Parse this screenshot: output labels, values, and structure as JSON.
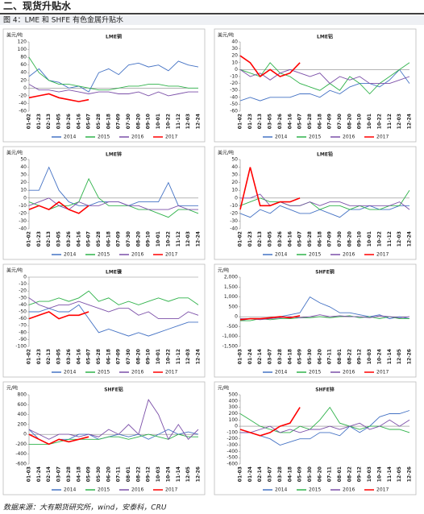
{
  "heading": "二、现货升贴水",
  "figure_title": "图 4：LME 和 SHFE 有色金属升贴水",
  "source": "数据来源：大有期货研究所，wind，安泰科，CRU",
  "chart_data": [
    {
      "type": "line",
      "title": "LME铜",
      "y_label": "美元/吨",
      "categories": [
        "01-02",
        "01-23",
        "02-13",
        "03-05",
        "03-26",
        "04-16",
        "05-07",
        "05-28",
        "06-18",
        "07-09",
        "07-30",
        "08-20",
        "09-10",
        "10-01",
        "10-22",
        "11-12",
        "12-03",
        "12-24"
      ],
      "ylim": [
        -60,
        120
      ],
      "yticks": [
        -60,
        -40,
        -20,
        0,
        20,
        40,
        60,
        80,
        100,
        120
      ],
      "series": [
        {
          "name": "2014",
          "color": "#4472c4",
          "values": [
            30,
            50,
            20,
            15,
            0,
            5,
            -10,
            40,
            50,
            35,
            60,
            65,
            55,
            60,
            45,
            70,
            60,
            55
          ]
        },
        {
          "name": "2015",
          "color": "#2fb24a",
          "values": [
            80,
            40,
            20,
            10,
            10,
            5,
            0,
            -5,
            -5,
            0,
            5,
            5,
            10,
            10,
            5,
            5,
            0,
            0
          ]
        },
        {
          "name": "2016",
          "color": "#7b4fa8",
          "values": [
            10,
            -5,
            -5,
            -10,
            -5,
            -10,
            -15,
            -10,
            -10,
            -15,
            -15,
            -10,
            -20,
            -10,
            -20,
            -15,
            -10,
            -10
          ]
        },
        {
          "name": "2017",
          "color": "#ff0000",
          "values": [
            -25,
            -20,
            -15,
            -25,
            -30,
            -35,
            -30,
            null,
            null,
            null,
            null,
            null,
            null,
            null,
            null,
            null,
            null,
            null
          ]
        }
      ]
    },
    {
      "type": "line",
      "title": "LME铝",
      "y_label": "美元/吨",
      "categories": [
        "01-02",
        "01-23",
        "02-13",
        "03-05",
        "03-26",
        "04-16",
        "05-07",
        "05-28",
        "06-18",
        "07-09",
        "07-30",
        "08-20",
        "09-10",
        "10-01",
        "10-22",
        "11-12",
        "12-03",
        "12-24"
      ],
      "ylim": [
        -60,
        40
      ],
      "yticks": [
        -60,
        -50,
        -40,
        -30,
        -20,
        -10,
        0,
        10,
        20,
        30,
        40
      ],
      "series": [
        {
          "name": "2014",
          "color": "#4472c4",
          "values": [
            -45,
            -40,
            -45,
            -40,
            -40,
            -40,
            -35,
            -35,
            -40,
            -30,
            -35,
            -25,
            -20,
            -20,
            -25,
            -15,
            0,
            -20
          ]
        },
        {
          "name": "2015",
          "color": "#2fb24a",
          "values": [
            0,
            -5,
            -10,
            10,
            -5,
            -10,
            -20,
            -25,
            -30,
            -20,
            -30,
            -10,
            -20,
            -35,
            -20,
            -10,
            0,
            10
          ]
        },
        {
          "name": "2016",
          "color": "#7b4fa8",
          "values": [
            0,
            -10,
            -5,
            -15,
            -5,
            0,
            -5,
            -10,
            -5,
            -20,
            -10,
            -15,
            -10,
            -20,
            -20,
            -20,
            -15,
            -10
          ]
        },
        {
          "name": "2017",
          "color": "#ff0000",
          "values": [
            20,
            10,
            -10,
            0,
            -10,
            -5,
            10,
            null,
            null,
            null,
            null,
            null,
            null,
            null,
            null,
            null,
            null,
            null
          ]
        }
      ]
    },
    {
      "type": "line",
      "title": "LME锌",
      "y_label": "美元/吨",
      "categories": [
        "01-02",
        "01-23",
        "02-13",
        "03-05",
        "03-26",
        "04-16",
        "05-07",
        "05-28",
        "06-18",
        "07-09",
        "07-30",
        "08-20",
        "09-10",
        "10-01",
        "10-22",
        "11-12",
        "12-03",
        "12-24"
      ],
      "ylim": [
        -40,
        50
      ],
      "yticks": [
        -40,
        -30,
        -20,
        -10,
        0,
        10,
        20,
        30,
        40,
        50
      ],
      "series": [
        {
          "name": "2014",
          "color": "#4472c4",
          "values": [
            10,
            10,
            40,
            10,
            -5,
            -10,
            -10,
            -5,
            -5,
            -5,
            -10,
            -5,
            -5,
            -5,
            20,
            -10,
            -10,
            -10
          ]
        },
        {
          "name": "2015",
          "color": "#2fb24a",
          "values": [
            -5,
            -10,
            -15,
            -10,
            -10,
            -5,
            25,
            0,
            -10,
            -10,
            -10,
            -15,
            -15,
            -20,
            -25,
            -15,
            -15,
            -20
          ]
        },
        {
          "name": "2016",
          "color": "#7b4fa8",
          "values": [
            -10,
            -5,
            0,
            -10,
            -15,
            -5,
            -10,
            -10,
            -5,
            -5,
            -10,
            -10,
            -15,
            -15,
            -15,
            -10,
            -15,
            -15
          ]
        },
        {
          "name": "2017",
          "color": "#ff0000",
          "values": [
            -15,
            -10,
            -15,
            -5,
            -15,
            -20,
            -10,
            null,
            null,
            null,
            null,
            null,
            null,
            null,
            null,
            null,
            null,
            null
          ]
        }
      ]
    },
    {
      "type": "line",
      "title": "LME铅",
      "y_label": "美元/吨",
      "categories": [
        "01-02",
        "01-23",
        "02-13",
        "03-05",
        "03-26",
        "04-16",
        "05-07",
        "05-28",
        "06-18",
        "07-09",
        "07-30",
        "08-20",
        "09-10",
        "10-01",
        "10-22",
        "11-12",
        "12-03",
        "12-24"
      ],
      "ylim": [
        -40,
        50
      ],
      "yticks": [
        -40,
        -30,
        -20,
        -10,
        0,
        10,
        20,
        30,
        40,
        50
      ],
      "series": [
        {
          "name": "2014",
          "color": "#4472c4",
          "values": [
            -20,
            -25,
            -15,
            -20,
            -10,
            -15,
            -20,
            -20,
            -15,
            -20,
            -25,
            -15,
            -15,
            -10,
            -15,
            -15,
            -10,
            -10
          ]
        },
        {
          "name": "2015",
          "color": "#2fb24a",
          "values": [
            -10,
            -5,
            0,
            -5,
            -5,
            -10,
            -10,
            -5,
            -15,
            -10,
            -10,
            -15,
            -10,
            -15,
            -15,
            -10,
            -10,
            10
          ]
        },
        {
          "name": "2016",
          "color": "#7b4fa8",
          "values": [
            0,
            0,
            5,
            -10,
            -5,
            -10,
            -10,
            -5,
            -10,
            -5,
            -5,
            -10,
            -10,
            -10,
            -10,
            -10,
            -5,
            -15
          ]
        },
        {
          "name": "2017",
          "color": "#ff0000",
          "values": [
            -15,
            40,
            -10,
            -10,
            -5,
            -5,
            0,
            null,
            null,
            null,
            null,
            null,
            null,
            null,
            null,
            null,
            null,
            null
          ]
        }
      ]
    },
    {
      "type": "line",
      "title": "LME镍",
      "y_label": "美元/吨",
      "categories": [
        "01-02",
        "01-23",
        "02-13",
        "03-05",
        "03-26",
        "04-16",
        "05-07",
        "05-28",
        "06-18",
        "07-09",
        "07-30",
        "08-20",
        "09-10",
        "10-01",
        "10-22",
        "11-12",
        "12-03",
        "12-24"
      ],
      "ylim": [
        -100,
        0
      ],
      "yticks": [
        -100,
        -90,
        -80,
        -70,
        -60,
        -50,
        -40,
        -30,
        -20,
        -10,
        0
      ],
      "series": [
        {
          "name": "2014",
          "color": "#4472c4",
          "values": [
            -50,
            -50,
            -45,
            -50,
            -50,
            -40,
            -60,
            -80,
            -75,
            -80,
            -85,
            -80,
            -85,
            -80,
            -75,
            -70,
            -65,
            -65
          ]
        },
        {
          "name": "2015",
          "color": "#2fb24a",
          "values": [
            -40,
            -35,
            -35,
            -30,
            -35,
            -30,
            -20,
            -35,
            -30,
            -40,
            -35,
            -40,
            -35,
            -30,
            -35,
            -30,
            -30,
            -40
          ]
        },
        {
          "name": "2016",
          "color": "#7b4fa8",
          "values": [
            -30,
            -40,
            -45,
            -40,
            -40,
            -35,
            -40,
            -45,
            -50,
            -45,
            -45,
            -55,
            -50,
            -60,
            -60,
            -60,
            -50,
            -55
          ]
        },
        {
          "name": "2017",
          "color": "#ff0000",
          "values": [
            -60,
            -55,
            -50,
            -60,
            -55,
            -55,
            -50,
            null,
            null,
            null,
            null,
            null,
            null,
            null,
            null,
            null,
            null,
            null
          ]
        }
      ]
    },
    {
      "type": "line",
      "title": "SHFE铜",
      "y_label": "元/吨",
      "categories": [
        "01-03",
        "01-24",
        "02-14",
        "03-07",
        "03-28",
        "04-18",
        "05-09",
        "05-30",
        "06-20",
        "07-11",
        "08-01",
        "08-22",
        "09-12",
        "10-03",
        "10-24",
        "11-14",
        "12-05",
        "12-26"
      ],
      "ylim": [
        -1500,
        2000
      ],
      "yticks": [
        {
          "value": -1500,
          "label": "-1,500"
        },
        {
          "value": -1000,
          "label": "-1,000"
        },
        -500,
        0,
        500,
        {
          "value": 1000,
          "label": "1,000"
        },
        {
          "value": 1500,
          "label": "1,500"
        },
        {
          "value": 2000,
          "label": "2,000"
        }
      ],
      "series": [
        {
          "name": "2014",
          "color": "#4472c4",
          "values": [
            -200,
            -100,
            -100,
            -50,
            0,
            100,
            200,
            1000,
            700,
            500,
            200,
            200,
            100,
            0,
            100,
            -100,
            0,
            -100
          ]
        },
        {
          "name": "2015",
          "color": "#2fb24a",
          "values": [
            -200,
            -200,
            -100,
            -150,
            -100,
            -100,
            -50,
            -50,
            0,
            -50,
            0,
            50,
            -50,
            0,
            -100,
            0,
            -100,
            -100
          ]
        },
        {
          "name": "2016",
          "color": "#7b4fa8",
          "values": [
            -100,
            -100,
            -150,
            -100,
            -50,
            0,
            -50,
            0,
            100,
            0,
            50,
            0,
            0,
            -50,
            50,
            0,
            -50,
            0
          ]
        },
        {
          "name": "2017",
          "color": "#ff0000",
          "values": [
            -150,
            -100,
            -100,
            -50,
            0,
            -50,
            50,
            null,
            null,
            null,
            null,
            null,
            null,
            null,
            null,
            null,
            null,
            null
          ]
        }
      ]
    },
    {
      "type": "line",
      "title": "SHFE铝",
      "y_label": "元/吨",
      "categories": [
        "01-03",
        "01-24",
        "02-14",
        "03-07",
        "03-28",
        "04-18",
        "05-09",
        "05-30",
        "06-20",
        "07-11",
        "08-01",
        "08-22",
        "09-12",
        "10-03",
        "10-24",
        "11-14",
        "12-05",
        "12-26"
      ],
      "ylim": [
        -600,
        800
      ],
      "yticks": [
        -600,
        -400,
        -200,
        0,
        200,
        400,
        600,
        800
      ],
      "series": [
        {
          "name": "2014",
          "color": "#4472c4",
          "values": [
            100,
            -100,
            -200,
            -100,
            -100,
            0,
            0,
            -100,
            -50,
            0,
            -50,
            0,
            -100,
            0,
            100,
            0,
            50,
            0
          ]
        },
        {
          "name": "2015",
          "color": "#2fb24a",
          "values": [
            -200,
            -200,
            -200,
            -150,
            -100,
            -100,
            -100,
            -100,
            -50,
            -50,
            -100,
            -50,
            0,
            -50,
            -100,
            0,
            -50,
            -50
          ]
        },
        {
          "name": "2016",
          "color": "#7b4fa8",
          "values": [
            100,
            0,
            -100,
            0,
            0,
            -50,
            0,
            -50,
            100,
            0,
            200,
            0,
            700,
            400,
            -100,
            200,
            -100,
            100
          ]
        },
        {
          "name": "2017",
          "color": "#ff0000",
          "values": [
            0,
            -100,
            -200,
            -100,
            -150,
            -100,
            -50,
            null,
            null,
            null,
            null,
            null,
            null,
            null,
            null,
            null,
            null,
            null
          ]
        }
      ]
    },
    {
      "type": "line",
      "title": "SHFE锌",
      "y_label": "元/吨",
      "categories": [
        "01-03",
        "01-24",
        "02-14",
        "03-07",
        "03-28",
        "04-18",
        "05-09",
        "05-30",
        "06-20",
        "07-11",
        "08-01",
        "08-22",
        "09-12",
        "10-03",
        "10-24",
        "11-14",
        "12-05",
        "12-26"
      ],
      "ylim": [
        -600,
        500
      ],
      "yticks": [
        -600,
        -500,
        -400,
        -300,
        -200,
        -100,
        0,
        100,
        200,
        300,
        400,
        500
      ],
      "series": [
        {
          "name": "2014",
          "color": "#4472c4",
          "values": [
            -100,
            -100,
            -150,
            -200,
            -300,
            -250,
            -200,
            -200,
            -100,
            -100,
            -150,
            0,
            -100,
            0,
            150,
            200,
            200,
            250
          ]
        },
        {
          "name": "2015",
          "color": "#2fb24a",
          "values": [
            200,
            100,
            0,
            -50,
            -100,
            -100,
            0,
            -50,
            100,
            300,
            50,
            0,
            -50,
            0,
            0,
            -50,
            -50,
            -100
          ]
        },
        {
          "name": "2016",
          "color": "#7b4fa8",
          "values": [
            -100,
            -100,
            -50,
            0,
            -100,
            -50,
            -100,
            -50,
            -50,
            0,
            -50,
            0,
            50,
            -50,
            0,
            100,
            0,
            100
          ]
        },
        {
          "name": "2017",
          "color": "#ff0000",
          "values": [
            -50,
            -100,
            -150,
            -100,
            0,
            50,
            300,
            null,
            null,
            null,
            null,
            null,
            null,
            null,
            null,
            null,
            null,
            null
          ]
        }
      ]
    }
  ]
}
